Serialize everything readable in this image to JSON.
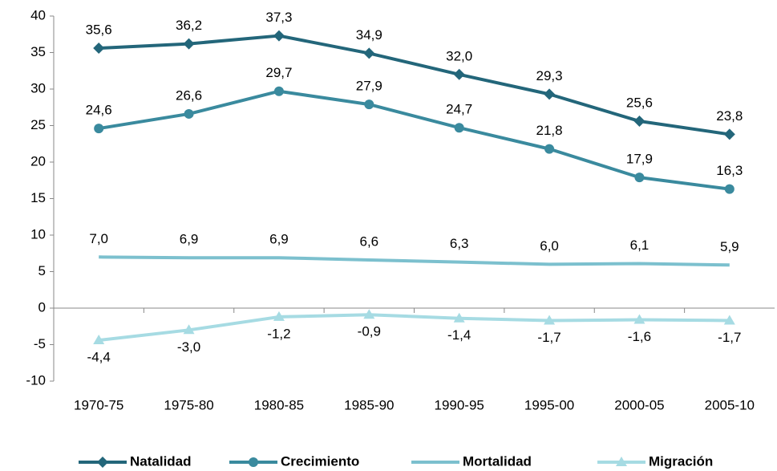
{
  "chart_data": {
    "type": "line",
    "categories": [
      "1970-75",
      "1975-80",
      "1980-85",
      "1985-90",
      "1990-95",
      "1995-00",
      "2000-05",
      "2005-10"
    ],
    "series": [
      {
        "name": "Natalidad",
        "color": "#23667a",
        "marker": "diamond",
        "values": [
          35.6,
          36.2,
          37.3,
          34.9,
          32.0,
          29.3,
          25.6,
          23.8
        ],
        "value_labels": [
          "35,6",
          "36,2",
          "37,3",
          "34,9",
          "32,0",
          "29,3",
          "25,6",
          "23,8"
        ]
      },
      {
        "name": "Crecimiento",
        "color": "#3a8a9e",
        "marker": "circle",
        "values": [
          24.6,
          26.6,
          29.7,
          27.9,
          24.7,
          21.8,
          17.9,
          16.3
        ],
        "value_labels": [
          "24,6",
          "26,6",
          "29,7",
          "27,9",
          "24,7",
          "21,8",
          "17,9",
          "16,3"
        ]
      },
      {
        "name": "Mortalidad",
        "color": "#7cc0ce",
        "marker": "none",
        "values": [
          7.0,
          6.9,
          6.9,
          6.6,
          6.3,
          6.0,
          6.1,
          5.9
        ],
        "value_labels": [
          "7,0",
          "6,9",
          "6,9",
          "6,6",
          "6,3",
          "6,0",
          "6,1",
          "5,9"
        ]
      },
      {
        "name": "Migración",
        "color": "#a6dbe3",
        "marker": "triangle",
        "values": [
          -4.4,
          -3.0,
          -1.2,
          -0.9,
          -1.4,
          -1.7,
          -1.6,
          -1.7
        ],
        "value_labels": [
          "-4,4",
          "-3,0",
          "-1,2",
          "-0,9",
          "-1,4",
          "-1,7",
          "-1,6",
          "-1,7"
        ]
      }
    ],
    "ylim": [
      -10,
      40
    ],
    "yticks": [
      -10,
      -5,
      0,
      5,
      10,
      15,
      20,
      25,
      30,
      35,
      40
    ],
    "legend": "bottom"
  }
}
